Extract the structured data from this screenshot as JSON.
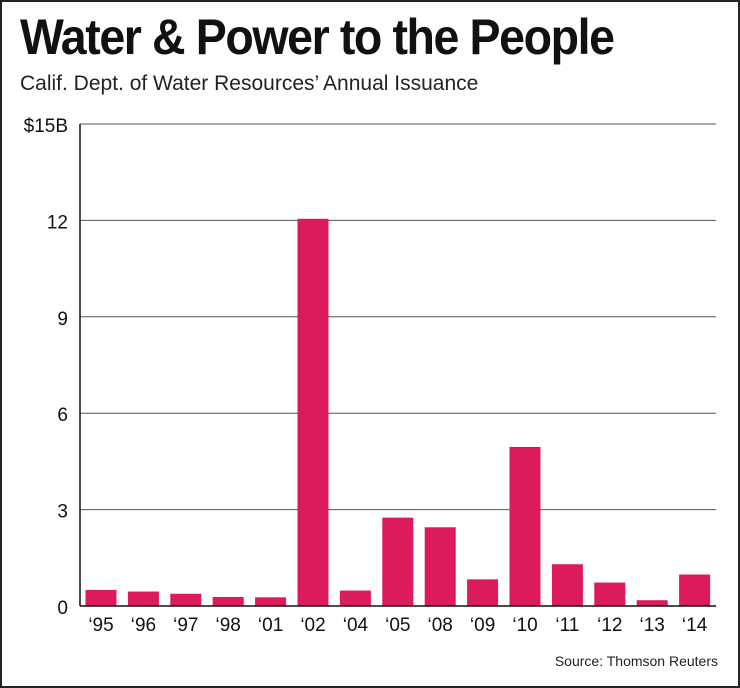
{
  "chart_data": {
    "type": "bar",
    "title": "Water & Power to the People",
    "subtitle": "Calif. Dept. of Water Resources’ Annual Issuance",
    "source": "Source: Thomson Reuters",
    "categories": [
      "‘95",
      "‘96",
      "‘97",
      "‘98",
      "‘01",
      "‘02",
      "‘04",
      "‘05",
      "‘08",
      "‘09",
      "‘10",
      "‘11",
      "‘12",
      "‘13",
      "‘14"
    ],
    "values": [
      0.5,
      0.45,
      0.38,
      0.28,
      0.27,
      12.05,
      0.48,
      2.75,
      2.45,
      0.83,
      4.95,
      1.3,
      0.73,
      0.18,
      0.98
    ],
    "yticks": [
      {
        "value": 0,
        "label": "0"
      },
      {
        "value": 3,
        "label": "3"
      },
      {
        "value": 6,
        "label": "6"
      },
      {
        "value": 9,
        "label": "9"
      },
      {
        "value": 12,
        "label": "12"
      },
      {
        "value": 15,
        "label": "$15B"
      }
    ],
    "ylim": [
      0,
      15
    ],
    "grid": true,
    "bar_color": "#dc1a5c"
  }
}
